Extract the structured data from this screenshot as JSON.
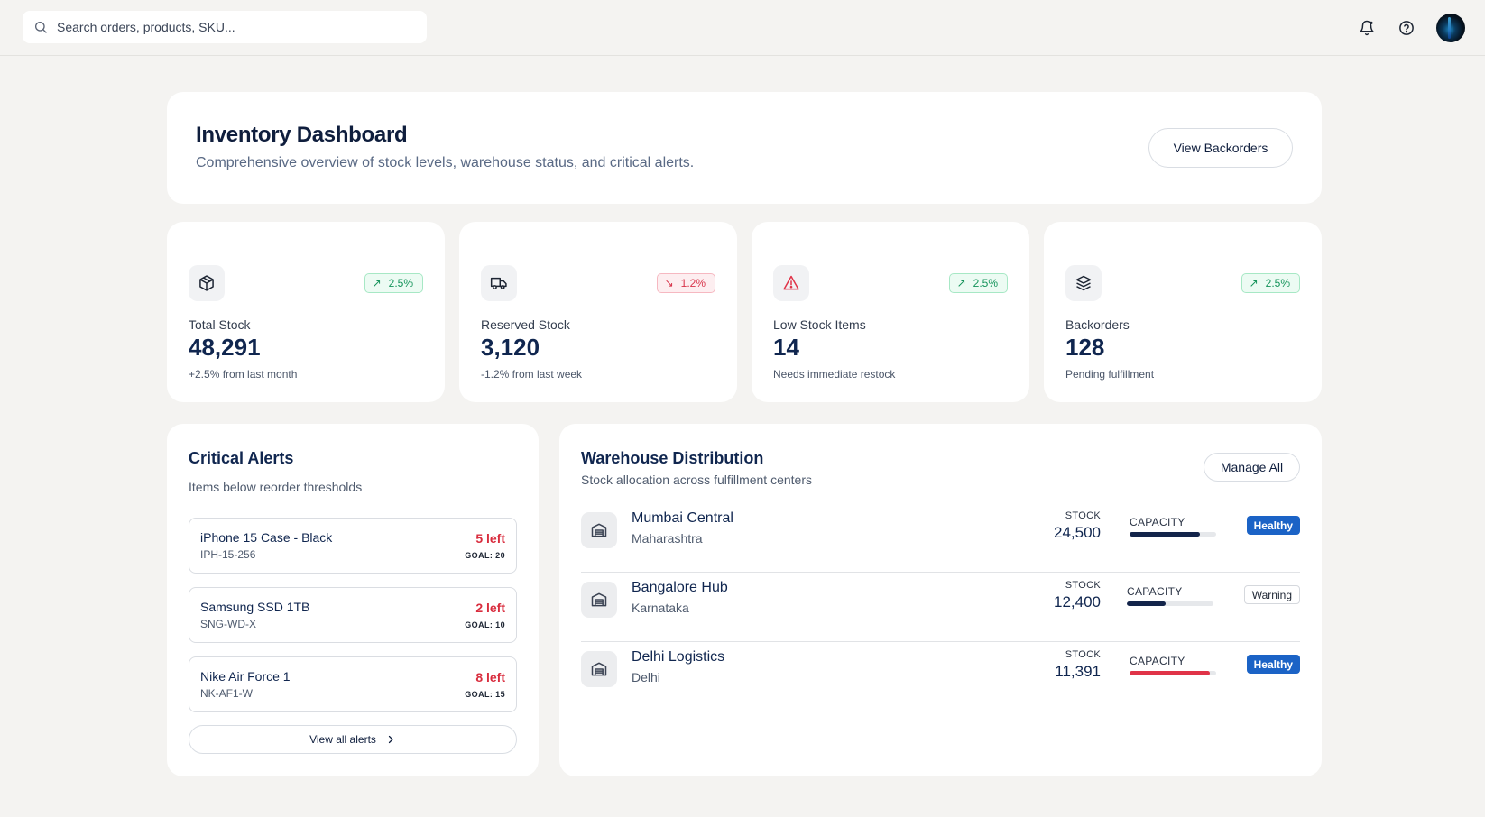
{
  "search": {
    "placeholder": "Search orders, products, SKU..."
  },
  "header": {
    "title": "Inventory Dashboard",
    "subtitle": "Comprehensive overview of stock levels, warehouse status, and critical alerts.",
    "backorders_button": "View Backorders"
  },
  "stats": [
    {
      "icon": "box-icon",
      "trend": "up",
      "change": "2.5%",
      "label": "Total Stock",
      "value": "48,291",
      "note": "+2.5% from last month"
    },
    {
      "icon": "truck-icon",
      "trend": "down",
      "change": "1.2%",
      "label": "Reserved Stock",
      "value": "3,120",
      "note": "-1.2% from last week"
    },
    {
      "icon": "warning-triangle-icon",
      "trend": "up",
      "change": "2.5%",
      "label": "Low Stock Items",
      "value": "14",
      "note": "Needs immediate restock"
    },
    {
      "icon": "layers-icon",
      "trend": "up",
      "change": "2.5%",
      "label": "Backorders",
      "value": "128",
      "note": "Pending fulfillment"
    }
  ],
  "alerts": {
    "title": "Critical Alerts",
    "subtitle": "Items below reorder thresholds",
    "items": [
      {
        "name": "iPhone 15 Case - Black",
        "sku": "IPH-15-256",
        "left": "5 left",
        "goal": "GOAL: 20"
      },
      {
        "name": "Samsung SSD 1TB",
        "sku": "SNG-WD-X",
        "left": "2 left",
        "goal": "GOAL: 10"
      },
      {
        "name": "Nike Air Force 1",
        "sku": "NK-AF1-W",
        "left": "8 left",
        "goal": "GOAL: 15"
      }
    ],
    "view_all": "View all alerts"
  },
  "warehouses": {
    "title": "Warehouse Distribution",
    "subtitle": "Stock allocation across fulfillment centers",
    "manage_button": "Manage All",
    "stock_label": "STOCK",
    "capacity_label": "CAPACITY",
    "items": [
      {
        "name": "Mumbai Central",
        "region": "Maharashtra",
        "stock": "24,500",
        "capacity_pct": 81,
        "capacity_color": "#13244a",
        "status": "Healthy"
      },
      {
        "name": "Bangalore Hub",
        "region": "Karnataka",
        "stock": "12,400",
        "capacity_pct": 45,
        "capacity_color": "#13244a",
        "status": "Warning"
      },
      {
        "name": "Delhi Logistics",
        "region": "Delhi",
        "stock": "11,391",
        "capacity_pct": 93,
        "capacity_color": "#e03348",
        "status": "Healthy"
      }
    ]
  },
  "colors": {
    "accent": "#10264f",
    "alert": "#d92d3e",
    "healthy": "#1b63c6",
    "up": "#14935a",
    "down": "#d8344a"
  }
}
